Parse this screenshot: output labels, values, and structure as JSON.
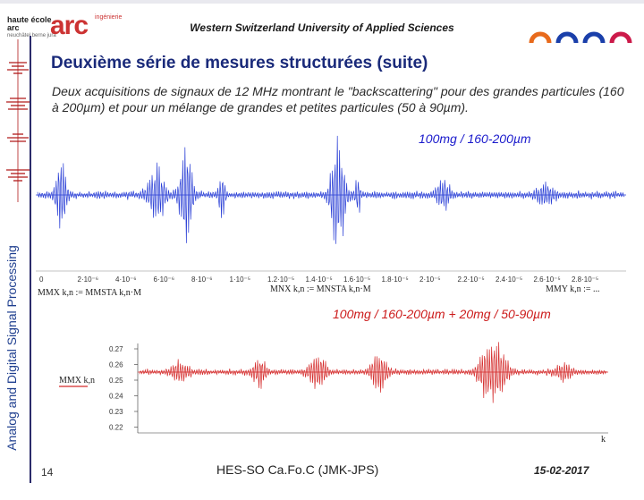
{
  "header": {
    "title": "Western Switzerland University of Applied Sciences",
    "logo_hes_line1": "haute école",
    "logo_hes_line2": "arc",
    "logo_hes_sub": "neuchâtel berne jura",
    "logo_arc": "arc",
    "logo_ing": "ingénierie"
  },
  "sidebar": {
    "label": "Analog and Digital Signal Processing"
  },
  "slide": {
    "title": "Deuxième série de mesures structurées (suite)",
    "description": "Deux acquisitions de signaux de 12 MHz montrant le \"backscattering\" pour des grandes particules (160 à 200µm) et pour un mélange de grandes et petites particules (50 à 90µm)."
  },
  "plot1": {
    "label": "100mg / 160-200µm",
    "color": "#2a3fd6",
    "x_ticks": [
      "0",
      "2·10⁻⁶",
      "4·10⁻⁶",
      "6·10⁻⁶",
      "8·10⁻⁶",
      "1·10⁻⁵",
      "1.2·10⁻⁵",
      "1.4·10⁻⁵",
      "1.6·10⁻⁵",
      "1.8·10⁻⁵",
      "2·10⁻⁵",
      "2.2·10⁻⁵",
      "2.4·10⁻⁵",
      "2.6·10⁻⁵",
      "2.8·10⁻⁵"
    ],
    "formula_left": "MMX k,n := MMSTA k,n·M",
    "formula_mid": "MNX k,n := MNSTA k,n·M",
    "formula_right": "MMY k,n := ..."
  },
  "plot2": {
    "label": "100mg / 160-200µm + 20mg / 50-90µm",
    "color": "#d42a2a",
    "y_ticks": [
      "0.27",
      "0.26",
      "0.25",
      "0.24",
      "0.23",
      "0.22"
    ],
    "y_axis_label": "MMX k,n",
    "x_axis_label": "k"
  },
  "footer": {
    "page": "14",
    "center": "HES-SO  Ca.Fo.C  (JMK-JPS)",
    "date": "15-02-2017"
  }
}
